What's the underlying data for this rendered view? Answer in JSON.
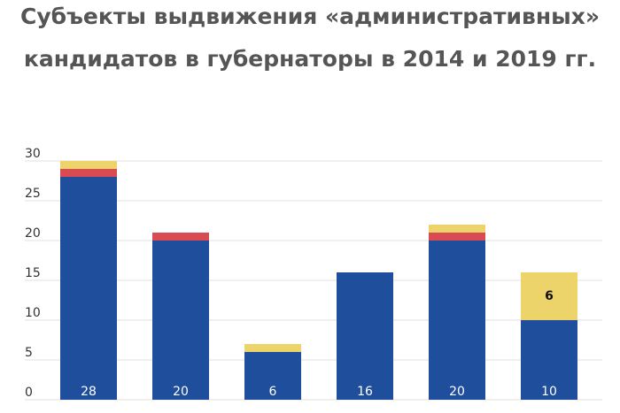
{
  "chart_data": {
    "type": "stacked_bar",
    "title": "Субъекты выдвижения «административных»",
    "subtitle": "кандидатов в губернаторы в 2014 и 2019 гг.",
    "categories": [
      null,
      null,
      null,
      null,
      null,
      null
    ],
    "series": [
      {
        "color": "#1f4e9c",
        "values": [
          28,
          20,
          6,
          16,
          20,
          10
        ]
      },
      {
        "color": "#d94a52",
        "values": [
          1,
          1,
          0,
          0,
          1,
          0
        ]
      },
      {
        "color": "#ecd46a",
        "values": [
          1,
          0,
          1,
          0,
          1,
          6
        ],
        "value_labels": [
          null,
          null,
          null,
          null,
          null,
          "6"
        ]
      }
    ],
    "ylim": [
      0,
      30
    ],
    "yticks": [
      0,
      5,
      10,
      15,
      20,
      25,
      30
    ],
    "grid": true
  }
}
